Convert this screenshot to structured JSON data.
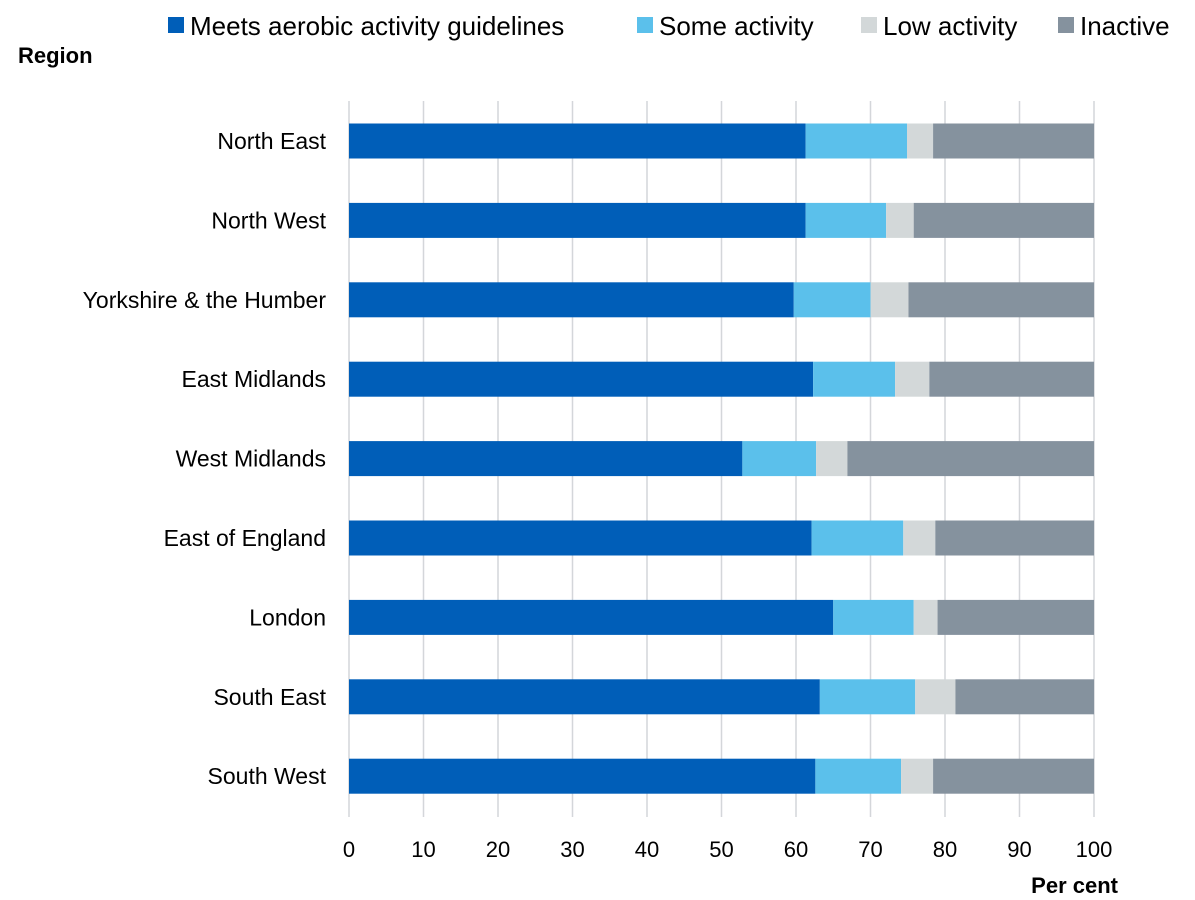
{
  "chart_data": {
    "type": "bar",
    "orientation": "horizontal",
    "stacked": true,
    "ylabel": "Region",
    "xlabel": "Per cent",
    "xlim": [
      0,
      100
    ],
    "xticks": [
      "0",
      "10",
      "20",
      "30",
      "40",
      "50",
      "60",
      "70",
      "80",
      "90",
      "100"
    ],
    "grid": true,
    "legend_position": "top",
    "categories": [
      "North East",
      "North West",
      "Yorkshire & the Humber",
      "East Midlands",
      "West Midlands",
      "East of England",
      "London",
      "South East",
      "South West"
    ],
    "series": [
      {
        "name": "Meets aerobic activity guidelines",
        "color": "#005eb8",
        "values": [
          61.3,
          61.3,
          59.7,
          62.3,
          52.8,
          62.1,
          65.0,
          63.2,
          62.6
        ]
      },
      {
        "name": "Some activity",
        "color": "#5bc0eb",
        "values": [
          13.6,
          10.8,
          10.3,
          11.0,
          9.9,
          12.3,
          10.8,
          12.8,
          11.5
        ]
      },
      {
        "name": "Low activity",
        "color": "#d3d8d9",
        "values": [
          3.5,
          3.7,
          5.1,
          4.6,
          4.2,
          4.3,
          3.2,
          5.4,
          4.3
        ]
      },
      {
        "name": "Inactive",
        "color": "#85929e",
        "values": [
          21.6,
          24.2,
          24.9,
          22.1,
          33.1,
          21.3,
          21.0,
          18.6,
          21.6
        ]
      }
    ]
  }
}
